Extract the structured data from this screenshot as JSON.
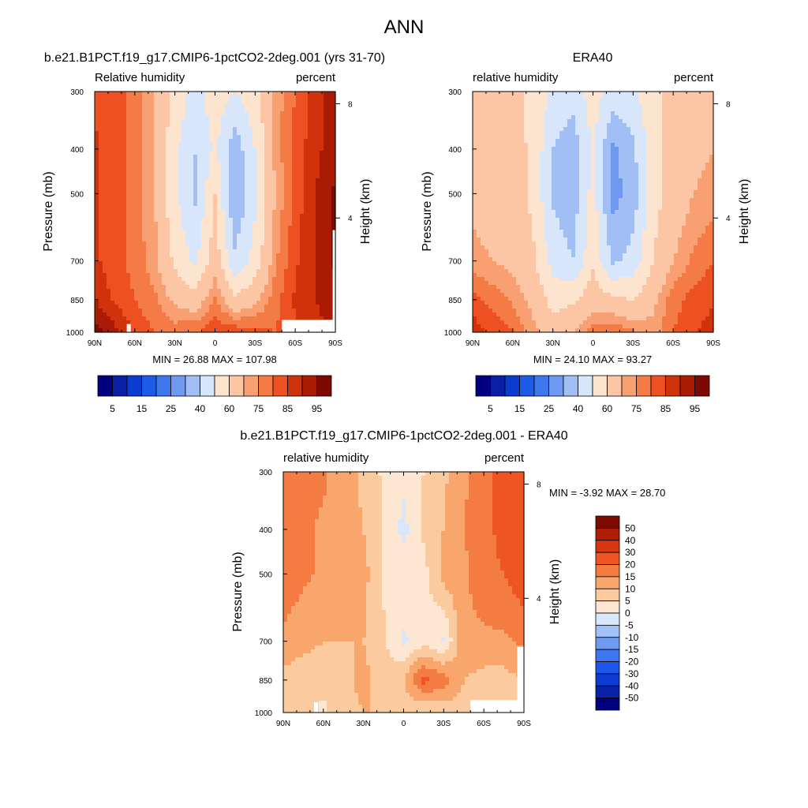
{
  "main_title": "ANN",
  "colors": {
    "rh": [
      "#000080",
      "#0a1fa6",
      "#0b3bd1",
      "#1c5ae8",
      "#3e77ec",
      "#6f99f0",
      "#a2bff5",
      "#d7e6fa",
      "#fde4cf",
      "#fcc5a3",
      "#f8a071",
      "#f47a46",
      "#ee5121",
      "#d0330b",
      "#a91b04",
      "#7d0a00"
    ],
    "diff": [
      "#000080",
      "#0a22a8",
      "#0e3bd6",
      "#1c57ec",
      "#3e76f2",
      "#6e9af4",
      "#a3c0f7",
      "#d8e7fb",
      "#fde7d3",
      "#fcca9f",
      "#f9a66c",
      "#f47b42",
      "#ef5522",
      "#d6370e",
      "#af1d03",
      "#7e0b00"
    ]
  },
  "chart_data": [
    {
      "type": "heatmap",
      "title": "b.e21.B1PCT.f19_g17.CMIP6-1pctCO2-2deg.001 (yrs 31-70)",
      "left_label": "Relative humidity",
      "right_label": "percent",
      "xlabel": "",
      "ylabel": "Pressure (mb)",
      "ylabel_right": "Height (km)",
      "x_ticks": [
        "90N",
        "60N",
        "30N",
        "0",
        "30S",
        "60S",
        "90S"
      ],
      "x_range": [
        90,
        -90
      ],
      "y_ticks": [
        300,
        400,
        500,
        700,
        850,
        1000
      ],
      "y_range": [
        300,
        1000
      ],
      "height_ticks": [
        {
          "km": 8,
          "label": "8"
        },
        {
          "km": 4,
          "label": "4"
        }
      ],
      "min_max_text": "MIN =  26.88  MAX = 107.98",
      "min": 26.88,
      "max": 107.98,
      "colorbar": {
        "orientation": "horizontal",
        "labels": [
          "5",
          "15",
          "25",
          "40",
          "60",
          "75",
          "85",
          "95"
        ]
      },
      "field": {
        "lats": [
          90,
          75,
          60,
          45,
          30,
          15,
          0,
          -15,
          -30,
          -45,
          -60,
          -75,
          -90
        ],
        "pressures": [
          300,
          400,
          500,
          700,
          850,
          1000
        ],
        "rows": [
          [
            84,
            82,
            78,
            70,
            58,
            46,
            56,
            50,
            57,
            72,
            80,
            88,
            92
          ],
          [
            86,
            82,
            78,
            70,
            52,
            40,
            52,
            34,
            50,
            72,
            82,
            88,
            94
          ],
          [
            86,
            82,
            78,
            70,
            52,
            38,
            60,
            30,
            48,
            70,
            82,
            90,
            96
          ],
          [
            86,
            82,
            78,
            72,
            58,
            48,
            66,
            42,
            54,
            74,
            84,
            90,
            96
          ],
          [
            90,
            84,
            80,
            76,
            68,
            64,
            76,
            62,
            68,
            78,
            86,
            90,
            94
          ],
          [
            98,
            92,
            84,
            80,
            78,
            80,
            84,
            84,
            82,
            80,
            84,
            88,
            90
          ]
        ]
      },
      "missing_boxes": [
        {
          "lat0": 66,
          "lat1": 63,
          "p0": 960,
          "p1": 1000
        },
        {
          "lat0": -50,
          "lat1": -88,
          "p0": 940,
          "p1": 1000
        },
        {
          "lat0": -88,
          "lat1": -90,
          "p0": 600,
          "p1": 1000
        }
      ]
    },
    {
      "type": "heatmap",
      "title": "ERA40",
      "left_label": "relative humidity",
      "right_label": "percent",
      "xlabel": "",
      "ylabel": "Pressure (mb)",
      "ylabel_right": "Height (km)",
      "x_ticks": [
        "90N",
        "60N",
        "30N",
        "0",
        "30S",
        "60S",
        "90S"
      ],
      "x_range": [
        90,
        -90
      ],
      "y_ticks": [
        300,
        400,
        500,
        700,
        850,
        1000
      ],
      "y_range": [
        300,
        1000
      ],
      "height_ticks": [
        {
          "km": 8,
          "label": "8"
        },
        {
          "km": 4,
          "label": "4"
        }
      ],
      "min_max_text": "MIN =  24.10  MAX =  93.27",
      "min": 24.1,
      "max": 93.27,
      "colorbar": {
        "orientation": "horizontal",
        "labels": [
          "5",
          "15",
          "25",
          "40",
          "60",
          "75",
          "85",
          "95"
        ]
      },
      "field": {
        "lats": [
          90,
          75,
          60,
          45,
          30,
          15,
          0,
          -15,
          -30,
          -45,
          -60,
          -75,
          -90
        ],
        "pressures": [
          300,
          400,
          500,
          700,
          850,
          1000
        ],
        "rows": [
          [
            64,
            64,
            62,
            58,
            48,
            44,
            55,
            46,
            48,
            58,
            62,
            64,
            66
          ],
          [
            68,
            66,
            64,
            58,
            40,
            34,
            52,
            28,
            38,
            56,
            64,
            68,
            70
          ],
          [
            68,
            66,
            64,
            58,
            38,
            34,
            54,
            26,
            34,
            56,
            64,
            70,
            72
          ],
          [
            72,
            70,
            68,
            62,
            46,
            40,
            58,
            38,
            44,
            60,
            70,
            76,
            80
          ],
          [
            82,
            78,
            74,
            68,
            56,
            58,
            66,
            62,
            60,
            68,
            78,
            82,
            84
          ],
          [
            88,
            84,
            80,
            72,
            66,
            70,
            78,
            80,
            76,
            72,
            80,
            84,
            88
          ]
        ]
      },
      "missing_boxes": []
    },
    {
      "type": "heatmap",
      "title": "b.e21.B1PCT.f19_g17.CMIP6-1pctCO2-2deg.001 - ERA40",
      "left_label": "relative humidity",
      "right_label": "percent",
      "xlabel": "",
      "ylabel": "Pressure (mb)",
      "ylabel_right": "Height (km)",
      "x_ticks": [
        "90N",
        "60N",
        "30N",
        "0",
        "30S",
        "60S",
        "90S"
      ],
      "x_range": [
        90,
        -90
      ],
      "y_ticks": [
        300,
        400,
        500,
        700,
        850,
        1000
      ],
      "y_range": [
        300,
        1000
      ],
      "height_ticks": [
        {
          "km": 8,
          "label": "8"
        },
        {
          "km": 4,
          "label": "4"
        }
      ],
      "min_max_text": "MIN =  -3.92  MAX =  28.70",
      "min": -3.92,
      "max": 28.7,
      "colorbar": {
        "orientation": "vertical",
        "labels": [
          "50",
          "40",
          "30",
          "20",
          "15",
          "10",
          "5",
          "0",
          "-5",
          "-10",
          "-15",
          "-20",
          "-30",
          "-40",
          "-50"
        ]
      },
      "field": {
        "lats": [
          90,
          75,
          60,
          45,
          30,
          15,
          0,
          -15,
          -30,
          -45,
          -60,
          -75,
          -90
        ],
        "pressures": [
          300,
          400,
          500,
          700,
          850,
          1000
        ],
        "rows": [
          [
            20,
            18,
            16,
            12,
            9,
            4,
            2,
            5,
            9,
            14,
            18,
            22,
            24
          ],
          [
            18,
            16,
            14,
            12,
            10,
            5,
            -2,
            6,
            10,
            15,
            18,
            22,
            26
          ],
          [
            18,
            16,
            14,
            12,
            12,
            4,
            4,
            3,
            12,
            14,
            18,
            20,
            24
          ],
          [
            14,
            12,
            10,
            10,
            10,
            6,
            -1,
            3,
            -1,
            14,
            14,
            14,
            16
          ],
          [
            8,
            6,
            6,
            8,
            12,
            6,
            10,
            22,
            18,
            10,
            8,
            8,
            10
          ],
          [
            10,
            8,
            4,
            8,
            10,
            10,
            6,
            4,
            6,
            8,
            4,
            4,
            2
          ]
        ]
      },
      "missing_boxes": [
        {
          "lat0": 67,
          "lat1": 64,
          "p0": 950,
          "p1": 1000
        },
        {
          "lat0": -50,
          "lat1": -90,
          "p0": 940,
          "p1": 1000
        },
        {
          "lat0": -85,
          "lat1": -90,
          "p0": 720,
          "p1": 1000
        }
      ]
    }
  ]
}
